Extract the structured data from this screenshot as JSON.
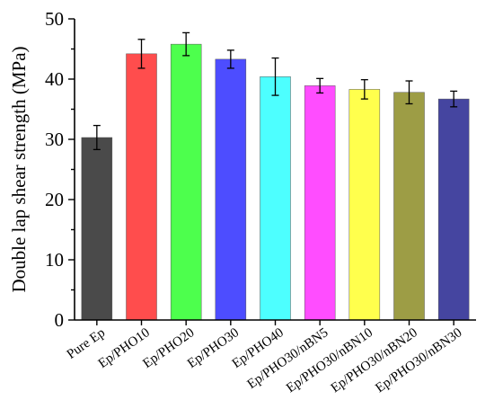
{
  "chart_data": {
    "type": "bar",
    "xlabel": "",
    "ylabel": "Double lap shear strength (MPa)",
    "ylim": [
      0,
      50
    ],
    "yticks": [
      0,
      10,
      20,
      30,
      40,
      50
    ],
    "grid": false,
    "categories": [
      "Pure Ep",
      "Ep/PHO10",
      "Ep/PHO20",
      "Ep/PHO30",
      "Ep/PHO40",
      "Ep/PHO30/nBN5",
      "Ep/PHO30/nBN10",
      "Ep/PHO30/nBN20",
      "Ep/PHO30/nBN30"
    ],
    "values": [
      30.3,
      44.2,
      45.8,
      43.3,
      40.4,
      38.9,
      38.3,
      37.8,
      36.7
    ],
    "errors": [
      2.0,
      2.4,
      1.9,
      1.5,
      3.1,
      1.2,
      1.6,
      1.9,
      1.3
    ],
    "colors": [
      "#4a4a4a",
      "#ff4d4d",
      "#4dff4d",
      "#4d4dff",
      "#4dffff",
      "#ff4dff",
      "#ffff4d",
      "#9d9d45",
      "#4545a0"
    ]
  }
}
